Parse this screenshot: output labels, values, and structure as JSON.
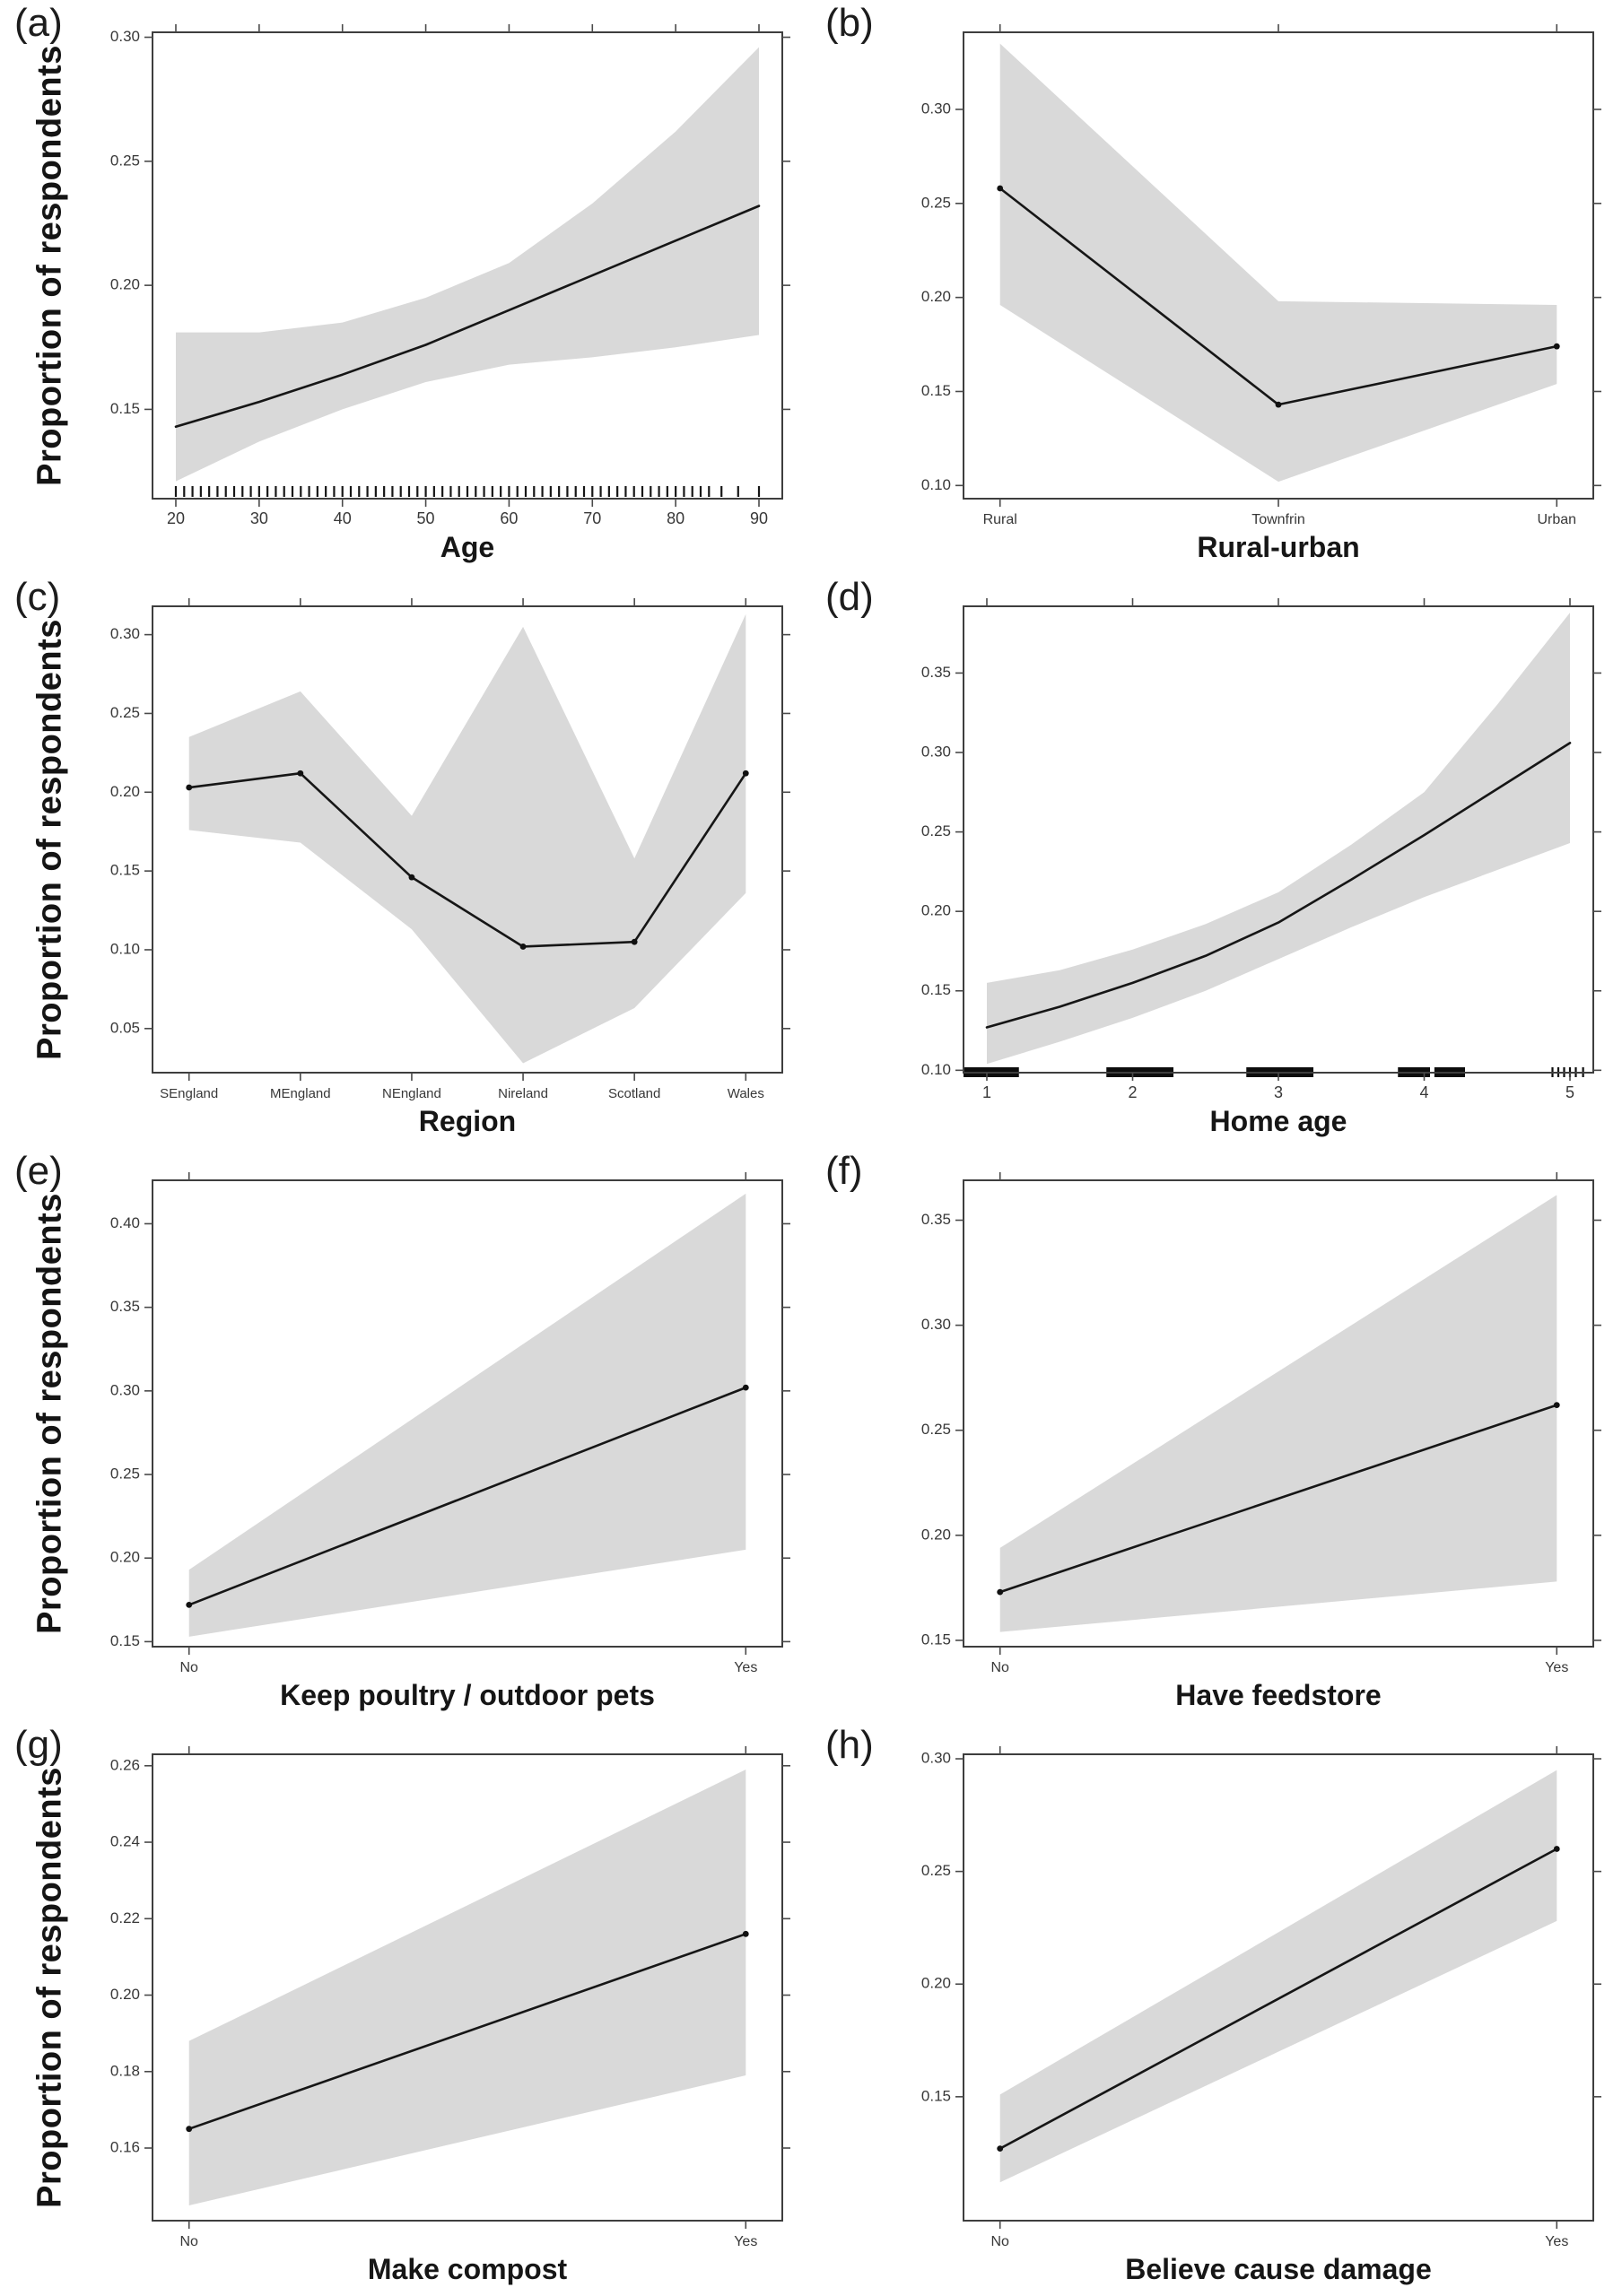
{
  "figure": {
    "ylabel": "Proportion of respondents"
  },
  "chart_data": [
    {
      "id": "a",
      "letter": "(a)",
      "xlabel": "Age",
      "ylabel": "Proportion of respondents",
      "type": "line",
      "x_type": "numeric",
      "x": [
        20,
        30,
        40,
        50,
        60,
        70,
        80,
        90
      ],
      "y": [
        0.143,
        0.153,
        0.164,
        0.176,
        0.19,
        0.204,
        0.218,
        0.232
      ],
      "ci_lower": [
        0.121,
        0.137,
        0.15,
        0.161,
        0.168,
        0.171,
        0.175,
        0.18
      ],
      "ci_upper": [
        0.181,
        0.181,
        0.185,
        0.195,
        0.209,
        0.233,
        0.262,
        0.296
      ],
      "xlim": [
        17.2,
        92.8
      ],
      "xticks": [
        20,
        30,
        40,
        50,
        60,
        70,
        80,
        90
      ],
      "xtick_labels": [
        "20",
        "30",
        "40",
        "50",
        "60",
        "70",
        "80",
        "90"
      ],
      "ylim": [
        0.114,
        0.302
      ],
      "yticks": [
        0.15,
        0.2,
        0.25,
        0.3
      ],
      "ytick_labels": [
        "0.15",
        "0.20",
        "0.25",
        "0.30"
      ],
      "rug": {
        "type": "ticks",
        "start": 20,
        "end": 84,
        "step": 1,
        "extra": [
          85.5,
          87.5,
          90
        ]
      },
      "show_points": false,
      "grid": false,
      "legend": "none"
    },
    {
      "id": "b",
      "letter": "(b)",
      "xlabel": "Rural-urban",
      "type": "line",
      "x_type": "categorical",
      "categories": [
        "Rural",
        "Townfrin",
        "Urban"
      ],
      "y": [
        0.258,
        0.143,
        0.174
      ],
      "ci_lower": [
        0.196,
        0.102,
        0.154
      ],
      "ci_upper": [
        0.335,
        0.198,
        0.196
      ],
      "ylim": [
        0.093,
        0.341
      ],
      "yticks": [
        0.1,
        0.15,
        0.2,
        0.25,
        0.3
      ],
      "ytick_labels": [
        "0.10",
        "0.15",
        "0.20",
        "0.25",
        "0.30"
      ],
      "show_points": true,
      "grid": false,
      "legend": "none"
    },
    {
      "id": "c",
      "letter": "(c)",
      "xlabel": "Region",
      "ylabel": "Proportion of respondents",
      "type": "line",
      "x_type": "categorical",
      "categories": [
        "SEngland",
        "MEngland",
        "NEngland",
        "Nireland",
        "Scotland",
        "Wales"
      ],
      "y": [
        0.203,
        0.212,
        0.146,
        0.102,
        0.105,
        0.212
      ],
      "ci_lower": [
        0.176,
        0.168,
        0.113,
        0.028,
        0.063,
        0.136
      ],
      "ci_upper": [
        0.235,
        0.264,
        0.185,
        0.305,
        0.158,
        0.313
      ],
      "ylim": [
        0.022,
        0.318
      ],
      "yticks": [
        0.05,
        0.1,
        0.15,
        0.2,
        0.25,
        0.3
      ],
      "ytick_labels": [
        "0.05",
        "0.10",
        "0.15",
        "0.20",
        "0.25",
        "0.30"
      ],
      "show_points": true,
      "grid": false,
      "legend": "none"
    },
    {
      "id": "d",
      "letter": "(d)",
      "xlabel": "Home age",
      "type": "line",
      "x_type": "numeric",
      "x": [
        1,
        1.5,
        2,
        2.5,
        3,
        3.5,
        4,
        4.5,
        5
      ],
      "y": [
        0.127,
        0.14,
        0.155,
        0.172,
        0.193,
        0.22,
        0.248,
        0.277,
        0.306
      ],
      "ci_lower": [
        0.104,
        0.118,
        0.133,
        0.15,
        0.17,
        0.19,
        0.209,
        0.226,
        0.243
      ],
      "ci_upper": [
        0.155,
        0.163,
        0.176,
        0.192,
        0.212,
        0.242,
        0.275,
        0.33,
        0.388
      ],
      "xlim": [
        0.84,
        5.16
      ],
      "xticks": [
        1,
        2,
        3,
        4,
        5
      ],
      "xtick_labels": [
        "1",
        "2",
        "3",
        "4",
        "5"
      ],
      "ylim": [
        0.0985,
        0.392
      ],
      "yticks": [
        0.1,
        0.15,
        0.2,
        0.25,
        0.3,
        0.35
      ],
      "ytick_labels": [
        "0.10",
        "0.15",
        "0.20",
        "0.25",
        "0.30",
        "0.35"
      ],
      "rug": {
        "type": "segments",
        "segments": [
          [
            0.84,
            1.22
          ],
          [
            1.82,
            2.28
          ],
          [
            2.78,
            3.24
          ],
          [
            3.82,
            4.04
          ],
          [
            4.07,
            4.28
          ]
        ],
        "ticks": [
          4.88,
          4.92,
          4.96,
          5.0,
          5.04,
          5.09
        ]
      },
      "show_points": false,
      "grid": false,
      "legend": "none"
    },
    {
      "id": "e",
      "letter": "(e)",
      "xlabel": "Keep poultry / outdoor pets",
      "ylabel": "Proportion of respondents",
      "type": "line",
      "x_type": "categorical",
      "categories": [
        "No",
        "Yes"
      ],
      "y": [
        0.172,
        0.302
      ],
      "ci_lower": [
        0.153,
        0.205
      ],
      "ci_upper": [
        0.193,
        0.418
      ],
      "ylim": [
        0.147,
        0.426
      ],
      "yticks": [
        0.15,
        0.2,
        0.25,
        0.3,
        0.35,
        0.4
      ],
      "ytick_labels": [
        "0.15",
        "0.20",
        "0.25",
        "0.30",
        "0.35",
        "0.40"
      ],
      "show_points": true,
      "grid": false,
      "legend": "none"
    },
    {
      "id": "f",
      "letter": "(f)",
      "xlabel": "Have feedstore",
      "type": "line",
      "x_type": "categorical",
      "categories": [
        "No",
        "Yes"
      ],
      "y": [
        0.173,
        0.262
      ],
      "ci_lower": [
        0.154,
        0.178
      ],
      "ci_upper": [
        0.194,
        0.362
      ],
      "ylim": [
        0.147,
        0.369
      ],
      "yticks": [
        0.15,
        0.2,
        0.25,
        0.3,
        0.35
      ],
      "ytick_labels": [
        "0.15",
        "0.20",
        "0.25",
        "0.30",
        "0.35"
      ],
      "show_points": true,
      "grid": false,
      "legend": "none"
    },
    {
      "id": "g",
      "letter": "(g)",
      "xlabel": "Make compost",
      "ylabel": "Proportion of respondents",
      "type": "line",
      "x_type": "categorical",
      "categories": [
        "No",
        "Yes"
      ],
      "y": [
        0.165,
        0.216
      ],
      "ci_lower": [
        0.145,
        0.179
      ],
      "ci_upper": [
        0.188,
        0.259
      ],
      "ylim": [
        0.141,
        0.263
      ],
      "yticks": [
        0.16,
        0.18,
        0.2,
        0.22,
        0.24,
        0.26
      ],
      "ytick_labels": [
        "0.16",
        "0.18",
        "0.20",
        "0.22",
        "0.24",
        "0.26"
      ],
      "show_points": true,
      "grid": false,
      "legend": "none"
    },
    {
      "id": "h",
      "letter": "(h)",
      "xlabel": "Believe cause damage",
      "type": "line",
      "x_type": "categorical",
      "categories": [
        "No",
        "Yes"
      ],
      "y": [
        0.127,
        0.26
      ],
      "ci_lower": [
        0.112,
        0.228
      ],
      "ci_upper": [
        0.151,
        0.295
      ],
      "ylim": [
        0.095,
        0.302
      ],
      "yticks": [
        0.15,
        0.2,
        0.25,
        0.3
      ],
      "ytick_labels": [
        "0.15",
        "0.20",
        "0.25",
        "0.30"
      ],
      "show_points": true,
      "grid": false,
      "legend": "none"
    }
  ],
  "band_color": "#d9d9d9",
  "line_color": "#161616"
}
